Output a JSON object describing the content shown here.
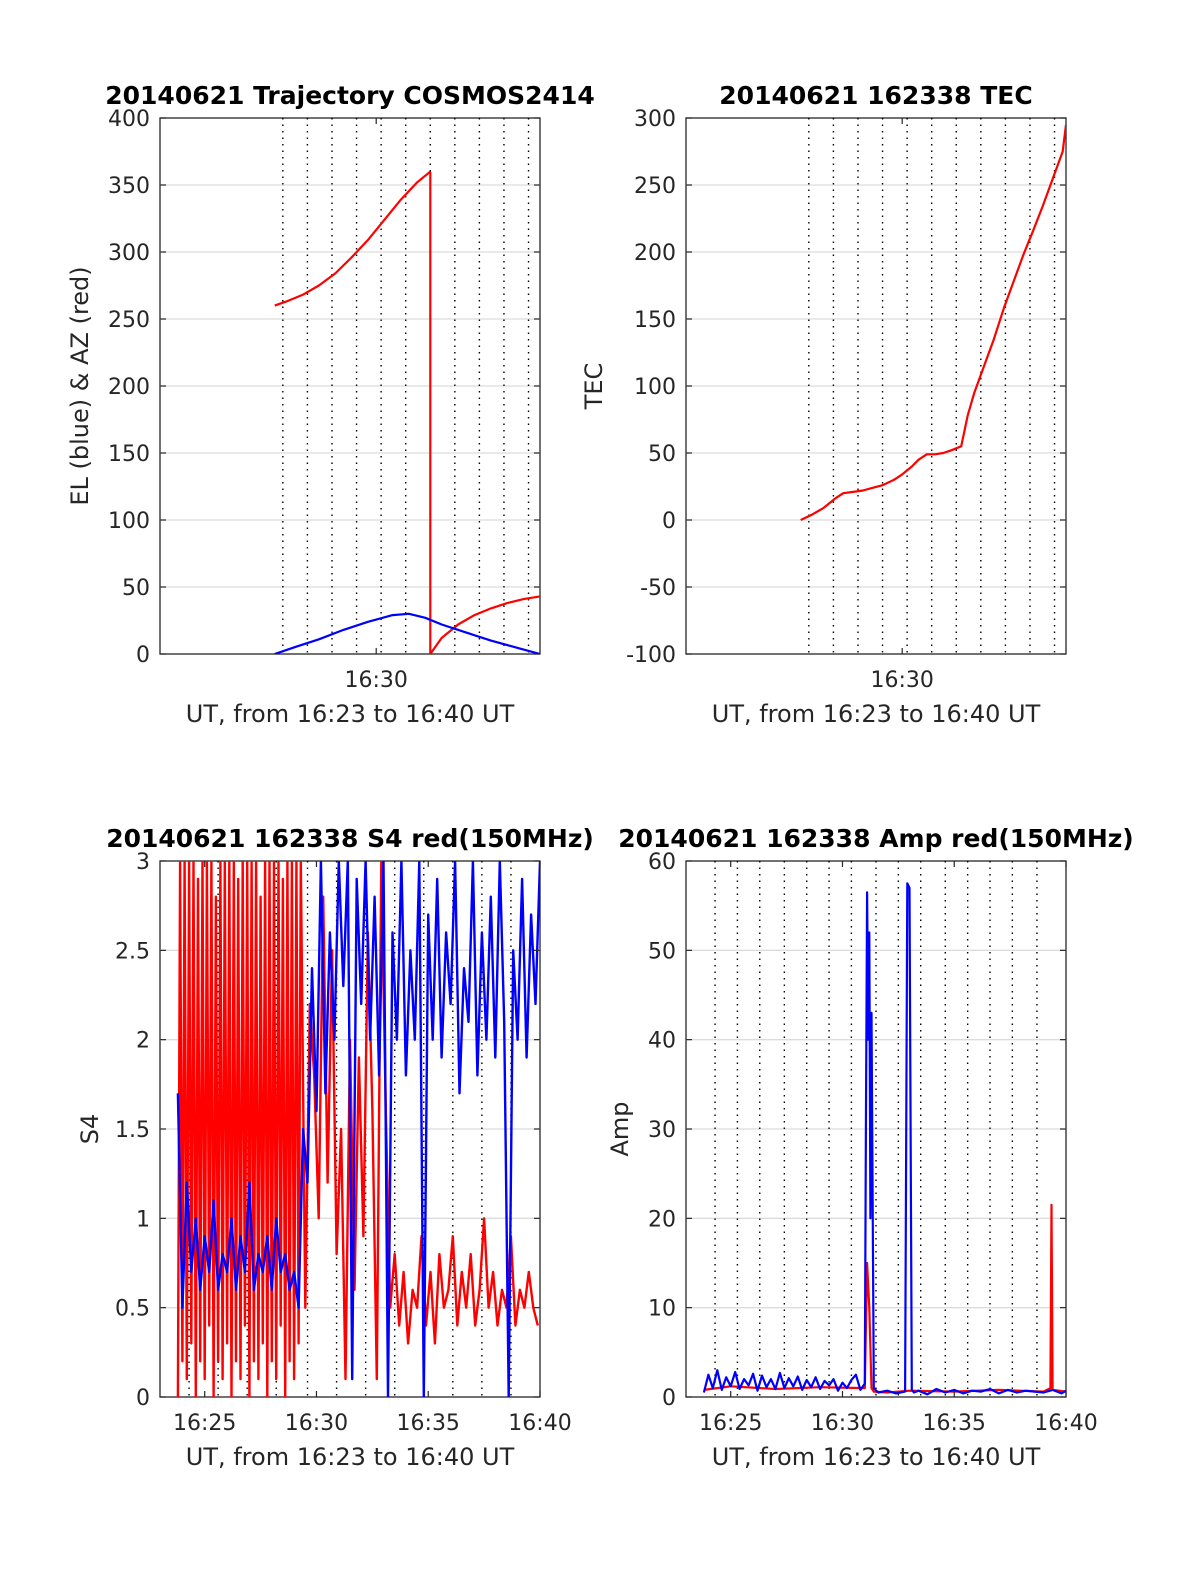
{
  "chart_data": [
    {
      "id": "traj",
      "type": "line",
      "title": "20140621 Trajectory COSMOS2414",
      "xlabel": "UT, from 16:23 to 16:40 UT",
      "ylabel": "EL (blue) & AZ (red)",
      "xlim": [
        16.8,
        40.0
      ],
      "ylim": [
        0,
        400
      ],
      "yticks": [
        0,
        50,
        100,
        150,
        200,
        250,
        300,
        350,
        400
      ],
      "xticks": [
        {
          "x": 30,
          "label": "16:30"
        }
      ],
      "grid_x": [
        24.3,
        25.8,
        27.3,
        28.8,
        30.3,
        31.8,
        33.3,
        34.8,
        36.3,
        37.8,
        39.3
      ],
      "grid_y": true,
      "series": [
        {
          "color": "#ff0000",
          "x": [
            23.8,
            24.5,
            25.5,
            26.5,
            27.5,
            28.5,
            29.5,
            30.5,
            31.5,
            32.5,
            33.3
          ],
          "y": [
            260,
            263,
            268,
            275,
            284,
            296,
            309,
            324,
            339,
            352,
            360
          ]
        },
        {
          "color": "#ff0000",
          "x": [
            33.3,
            33.3
          ],
          "y": [
            360,
            0
          ]
        },
        {
          "color": "#ff0000",
          "x": [
            33.3,
            34.0,
            35.0,
            36.0,
            37.0,
            38.0,
            39.0,
            40.0
          ],
          "y": [
            0,
            12,
            22,
            29,
            34,
            38,
            41,
            43
          ]
        },
        {
          "color": "#0000ff",
          "x": [
            23.8,
            25.0,
            26.5,
            28.0,
            29.5,
            31.0,
            32.0,
            33.0,
            34.0,
            35.5,
            37.0,
            38.5,
            40.0
          ],
          "y": [
            0,
            5,
            11,
            18,
            24,
            29,
            30,
            27,
            22,
            16,
            10,
            5,
            0
          ]
        }
      ]
    },
    {
      "id": "tec",
      "type": "line",
      "title": "20140621 162338 TEC",
      "xlabel": "UT, from 16:23 to 16:40 UT",
      "ylabel": "TEC",
      "xlim": [
        16.8,
        40.0
      ],
      "ylim": [
        -100,
        300
      ],
      "yticks": [
        -100,
        -50,
        0,
        50,
        100,
        150,
        200,
        250,
        300
      ],
      "xticks": [
        {
          "x": 30,
          "label": "16:30"
        }
      ],
      "grid_x": [
        24.3,
        25.8,
        27.3,
        28.8,
        30.3,
        31.8,
        33.3,
        34.8,
        36.3,
        37.8,
        39.3
      ],
      "grid_y": true,
      "series": [
        {
          "color": "#ff0000",
          "x": [
            23.8,
            24.5,
            25.2,
            25.9,
            26.4,
            27.0,
            27.6,
            28.2,
            28.8,
            29.5,
            30.0,
            30.6,
            31.0,
            31.5,
            32.0,
            32.5,
            33.0,
            33.6,
            34.0,
            34.4,
            35.0,
            35.6,
            36.2,
            36.8,
            37.4,
            38.0,
            38.6,
            39.2,
            39.8,
            40.0
          ],
          "y": [
            0,
            4,
            9,
            16,
            20,
            21,
            22,
            24,
            26,
            30,
            34,
            40,
            45,
            49,
            49,
            50,
            52,
            55,
            78,
            95,
            115,
            135,
            158,
            178,
            198,
            216,
            235,
            255,
            275,
            295
          ]
        }
      ]
    },
    {
      "id": "s4",
      "type": "line",
      "title": "20140621 162338 S4 red(150MHz)",
      "xlabel": "UT, from 16:23 to 16:40 UT",
      "ylabel": "S4",
      "xlim": [
        23.0,
        40.0
      ],
      "ylim": [
        0,
        3
      ],
      "yticks": [
        0,
        0.5,
        1,
        1.5,
        2,
        2.5,
        3
      ],
      "xticks": [
        {
          "x": 25,
          "label": "16:25"
        },
        {
          "x": 30,
          "label": "16:30"
        },
        {
          "x": 35,
          "label": "16:35"
        },
        {
          "x": 40,
          "label": "16:40"
        }
      ],
      "grid_x": [
        24.3,
        25.6,
        26.9,
        28.2,
        29.6,
        30.9,
        32.2,
        33.5,
        34.8,
        36.1,
        37.4,
        38.7
      ],
      "grid_y": true,
      "series": [
        {
          "color": "#ff0000",
          "x": [
            23.8,
            23.9,
            24.0,
            24.1,
            24.2,
            24.3,
            24.4,
            24.5,
            24.6,
            24.7,
            24.8,
            24.9,
            25.0,
            25.1,
            25.2,
            25.3,
            25.4,
            25.5,
            25.6,
            25.7,
            25.8,
            25.9,
            26.0,
            26.1,
            26.2,
            26.3,
            26.4,
            26.5,
            26.6,
            26.7,
            26.8,
            26.9,
            27.0,
            27.1,
            27.2,
            27.3,
            27.4,
            27.5,
            27.6,
            27.7,
            27.8,
            27.9,
            28.0,
            28.1,
            28.2,
            28.3,
            28.4,
            28.5,
            28.6,
            28.7,
            28.8,
            28.9,
            29.0,
            29.1,
            29.2,
            29.3,
            29.5,
            29.7,
            29.9,
            30.1,
            30.3,
            30.5,
            30.7,
            30.9,
            31.1,
            31.3,
            31.5,
            31.7,
            31.9,
            32.1,
            32.3,
            32.5,
            32.7,
            32.9,
            33.1,
            33.3,
            33.5,
            33.7,
            33.9,
            34.1,
            34.3,
            34.5,
            34.7,
            34.9,
            35.1,
            35.3,
            35.5,
            35.7,
            35.9,
            36.1,
            36.3,
            36.5,
            36.7,
            36.9,
            37.1,
            37.3,
            37.5,
            37.7,
            37.9,
            38.1,
            38.3,
            38.5,
            38.7,
            38.9,
            39.1,
            39.3,
            39.5,
            39.7,
            39.9
          ],
          "y": [
            0,
            3,
            0.2,
            3,
            0.1,
            3,
            0.3,
            3,
            0,
            2.9,
            0.2,
            3,
            0.1,
            3,
            0.4,
            3,
            0,
            2.8,
            0.2,
            3,
            0.1,
            3,
            0.3,
            3,
            0,
            3,
            0.2,
            2.9,
            0.1,
            3,
            0.4,
            3,
            0,
            3,
            0.2,
            3,
            0.1,
            2.8,
            0.3,
            3,
            0,
            3,
            0.2,
            3,
            0.1,
            3,
            0.4,
            2.9,
            0,
            3,
            0.2,
            3,
            0.1,
            3,
            0.3,
            3,
            0.5,
            2.2,
            1.8,
            1.0,
            2.8,
            1.2,
            2.5,
            0.8,
            1.5,
            0.1,
            2.0,
            0.6,
            1.9,
            0.9,
            2.6,
            1.6,
            0.1,
            3.0,
            1.6,
            0.5,
            0.8,
            0.4,
            0.7,
            0.3,
            0.6,
            0.5,
            0.9,
            0.4,
            0.7,
            0.3,
            0.8,
            0.5,
            0.6,
            0.9,
            0.4,
            0.7,
            0.5,
            0.8,
            0.4,
            0.6,
            1.0,
            0.5,
            0.7,
            0.4,
            0.6,
            0.5,
            0.9,
            0.4,
            0.6,
            0.5,
            0.7,
            0.5,
            0.4
          ]
        },
        {
          "color": "#0000ff",
          "x": [
            23.8,
            24.0,
            24.2,
            24.4,
            24.6,
            24.8,
            25.0,
            25.2,
            25.4,
            25.6,
            25.8,
            26.0,
            26.2,
            26.4,
            26.6,
            26.8,
            27.0,
            27.2,
            27.4,
            27.6,
            27.8,
            28.0,
            28.2,
            28.4,
            28.6,
            28.8,
            29.0,
            29.2,
            29.4,
            29.6,
            29.8,
            30.0,
            30.2,
            30.4,
            30.6,
            30.8,
            31.0,
            31.2,
            31.4,
            31.6,
            31.8,
            32.0,
            32.2,
            32.4,
            32.6,
            32.8,
            33.0,
            33.2,
            33.4,
            33.6,
            33.8,
            34.0,
            34.2,
            34.4,
            34.6,
            34.8,
            35.0,
            35.2,
            35.4,
            35.6,
            35.8,
            36.0,
            36.2,
            36.4,
            36.6,
            36.8,
            37.0,
            37.2,
            37.4,
            37.6,
            37.8,
            38.0,
            38.2,
            38.4,
            38.6,
            38.8,
            39.0,
            39.2,
            39.4,
            39.6,
            39.8,
            40.0
          ],
          "y": [
            1.7,
            0.5,
            1.2,
            0.7,
            1.0,
            0.6,
            0.9,
            0.7,
            1.1,
            0.6,
            0.8,
            0.7,
            1.0,
            0.6,
            0.9,
            0.7,
            1.2,
            0.6,
            0.8,
            0.7,
            0.9,
            0.6,
            1.0,
            0.7,
            0.8,
            0.6,
            0.7,
            0.5,
            1.5,
            1.2,
            2.4,
            1.6,
            3.0,
            1.7,
            2.6,
            2.0,
            3.0,
            2.3,
            3.0,
            0.1,
            2.9,
            2.2,
            3.0,
            2.0,
            2.8,
            1.8,
            3.0,
            0.0,
            2.6,
            2.0,
            3.0,
            1.8,
            2.5,
            2.0,
            3.0,
            0.0,
            2.7,
            2.0,
            2.9,
            1.9,
            2.6,
            2.2,
            3.0,
            1.7,
            2.4,
            2.1,
            3.0,
            1.8,
            2.6,
            2.0,
            2.8,
            1.9,
            3.0,
            2.1,
            0.0,
            2.5,
            2.0,
            2.9,
            1.9,
            2.7,
            2.2,
            3.0
          ]
        }
      ]
    },
    {
      "id": "amp",
      "type": "line",
      "title": "20140621 162338 Amp red(150MHz)",
      "xlabel": "UT, from 16:23 to 16:40 UT",
      "ylabel": "Amp",
      "xlim": [
        23.0,
        40.0
      ],
      "ylim": [
        0,
        60
      ],
      "yticks": [
        0,
        10,
        20,
        30,
        40,
        50,
        60
      ],
      "xticks": [
        {
          "x": 25,
          "label": "16:25"
        },
        {
          "x": 30,
          "label": "16:30"
        },
        {
          "x": 35,
          "label": "16:35"
        },
        {
          "x": 40,
          "label": "16:40"
        }
      ],
      "grid_x": [
        24.3,
        25.3,
        26.3,
        27.4,
        28.4,
        29.4,
        30.4,
        31.5,
        32.5,
        33.5,
        34.6,
        35.6,
        36.6,
        37.6,
        38.7
      ],
      "grid_y": true,
      "series": [
        {
          "color": "#ff0000",
          "x": [
            23.8,
            25.0,
            27.0,
            29.0,
            31.0,
            31.1,
            31.2,
            31.3,
            31.4,
            32.0,
            33.0,
            35.0,
            37.0,
            39.0,
            39.3,
            39.35,
            39.4,
            40.0
          ],
          "y": [
            0.8,
            1.2,
            0.9,
            1.1,
            1.0,
            15.0,
            10.0,
            1.0,
            0.6,
            0.5,
            0.7,
            0.6,
            0.8,
            0.6,
            1.0,
            21.5,
            0.8,
            0.6
          ]
        },
        {
          "color": "#0000ff",
          "x": [
            23.8,
            24.0,
            24.2,
            24.4,
            24.6,
            24.8,
            25.0,
            25.2,
            25.4,
            25.6,
            25.8,
            26.0,
            26.2,
            26.4,
            26.6,
            26.8,
            27.0,
            27.2,
            27.4,
            27.6,
            27.8,
            28.0,
            28.2,
            28.4,
            28.6,
            28.8,
            29.0,
            29.2,
            29.4,
            29.6,
            29.8,
            30.0,
            30.2,
            30.4,
            30.6,
            30.8,
            31.0,
            31.05,
            31.1,
            31.15,
            31.2,
            31.25,
            31.3,
            31.4,
            31.6,
            32.0,
            32.4,
            32.8,
            32.9,
            33.0,
            33.1,
            33.2,
            33.4,
            33.8,
            34.2,
            34.6,
            35.0,
            35.4,
            35.8,
            36.2,
            36.6,
            37.0,
            37.4,
            37.8,
            38.2,
            38.6,
            39.0,
            39.4,
            39.8,
            40.0
          ],
          "y": [
            0.5,
            2.5,
            1.0,
            3.0,
            0.8,
            2.2,
            1.2,
            2.8,
            0.9,
            2.0,
            1.3,
            2.6,
            0.7,
            2.4,
            1.1,
            2.0,
            0.9,
            2.7,
            1.0,
            2.1,
            1.2,
            2.3,
            0.8,
            1.9,
            1.1,
            2.2,
            0.9,
            1.8,
            1.3,
            2.0,
            0.7,
            1.6,
            1.0,
            1.9,
            2.5,
            0.8,
            1.5,
            30.0,
            56.5,
            40.0,
            52.0,
            20.0,
            43.0,
            1.0,
            0.5,
            0.7,
            0.4,
            0.6,
            57.5,
            57.0,
            0.8,
            0.5,
            0.7,
            0.3,
            0.9,
            0.5,
            0.8,
            0.4,
            0.7,
            0.6,
            0.9,
            0.4,
            0.8,
            0.5,
            0.7,
            0.6,
            0.5,
            0.8,
            0.4,
            0.7
          ]
        }
      ]
    }
  ]
}
